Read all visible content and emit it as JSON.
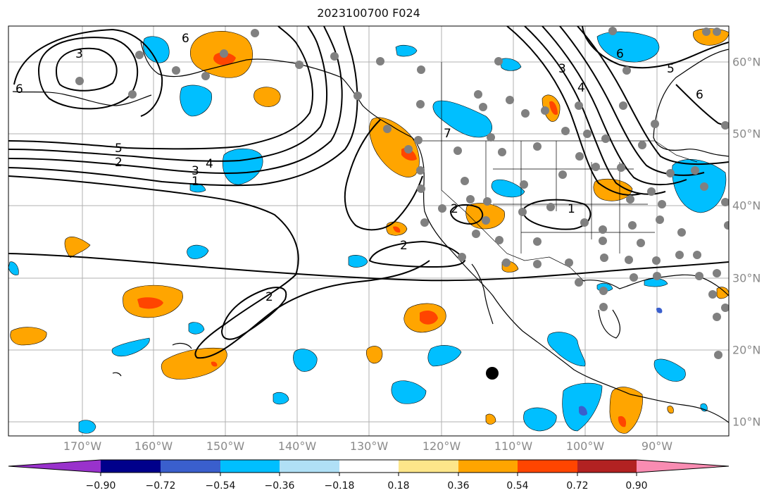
{
  "title": "2023100700 F024",
  "map": {
    "lon_labels": [
      "170°W",
      "160°W",
      "150°W",
      "140°W",
      "130°W",
      "120°W",
      "110°W",
      "100°W",
      "90°W"
    ],
    "lat_labels": [
      "60°N",
      "50°N",
      "40°N",
      "30°N",
      "20°N",
      "10°N"
    ],
    "contour_labels": [
      "3",
      "6",
      "5",
      "2",
      "3",
      "4",
      "1",
      "2",
      "2",
      "7",
      "6",
      "5",
      "6",
      "3",
      "4",
      "1",
      "2",
      "6"
    ],
    "grid": true,
    "land_color": "#ffffff",
    "contour_color": "#000000",
    "station_marker_color": "#808080"
  },
  "colorbar": {
    "ticks": [
      "−0.90",
      "−0.72",
      "−0.54",
      "−0.36",
      "−0.18",
      "0.18",
      "0.36",
      "0.54",
      "0.72",
      "0.90"
    ],
    "colors": [
      "#9932cc",
      "#00008b",
      "#3a5fcd",
      "#00bfff",
      "#b0e0f6",
      "#ffffff",
      "#fde68a",
      "#ffa500",
      "#ff4500",
      "#b22222",
      "#f98cb2"
    ]
  }
}
